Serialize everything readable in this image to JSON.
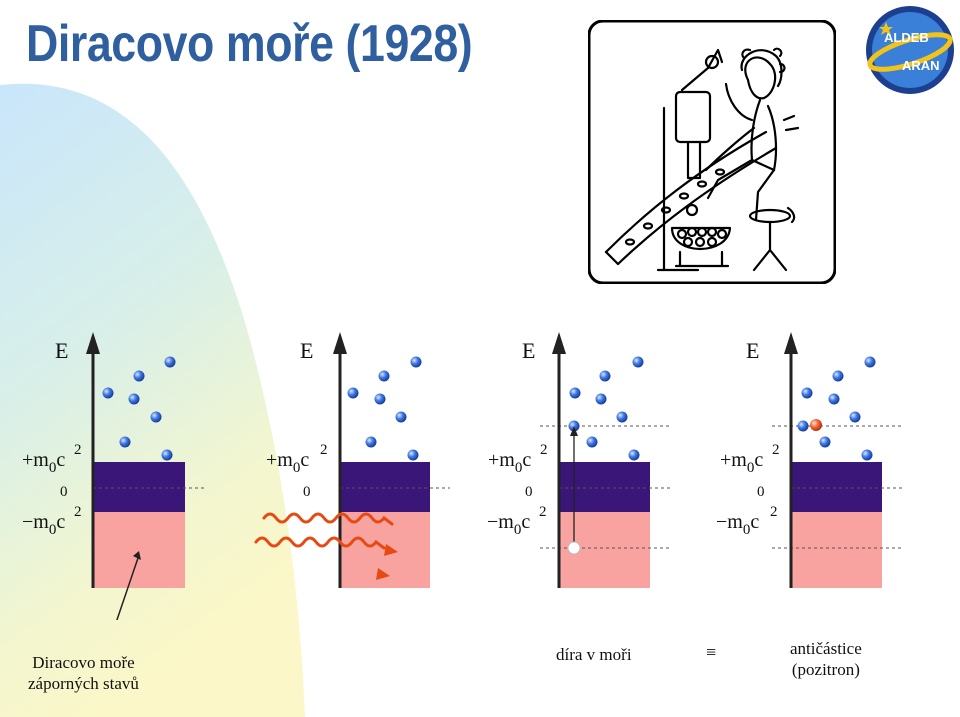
{
  "slide": {
    "title": "Diracovo moře (1928)",
    "logo": {
      "icon": "alderaran-logo-icon",
      "text_top": "ALDEB",
      "text_bottom": "ARAN",
      "colors": {
        "ring": "#1c3f8f",
        "fill": "#2f6fd0",
        "accent": "#f2c318"
      }
    }
  },
  "cartoon": {
    "icon": "dirac-sea-cartoon-icon"
  },
  "diagrams": [
    {
      "axis_label": "E",
      "upper_label": "+m",
      "upper_sub": "0",
      "upper_base": "c",
      "upper_sup": "2",
      "zero_label": "0",
      "lower_label": "−m",
      "lower_sub": "0",
      "lower_base": "c",
      "lower_sup": "2",
      "variant": "filled-sea"
    },
    {
      "axis_label": "E",
      "upper_label": "+m",
      "upper_sub": "0",
      "upper_base": "c",
      "upper_sup": "2",
      "zero_label": "0",
      "variant": "photons"
    },
    {
      "axis_label": "E",
      "upper_label": "+m",
      "upper_sub": "0",
      "upper_base": "c",
      "upper_sup": "2",
      "zero_label": "0",
      "lower_label": "−m",
      "lower_sub": "0",
      "lower_base": "c",
      "lower_sup": "2",
      "variant": "excitation"
    },
    {
      "axis_label": "E",
      "upper_label": "+m",
      "upper_sub": "0",
      "upper_base": "c",
      "upper_sup": "2",
      "zero_label": "0",
      "lower_label": "−m",
      "lower_sub": "0",
      "lower_base": "c",
      "lower_sup": "2",
      "variant": "positron"
    }
  ],
  "captions": {
    "sea_line1": "Diracovo moře",
    "sea_line2": "záporných stavů",
    "hole": "díra v moři",
    "equiv": "≡",
    "anti_line1": "antičástice",
    "anti_line2": "(pozitron)"
  },
  "colors": {
    "band_upper": "#3a1678",
    "band_lower": "#f9a3a0",
    "particle": "#2b62d8",
    "photon": "#e64a12",
    "positron": "#f06030",
    "title": "#2f5f9f"
  }
}
